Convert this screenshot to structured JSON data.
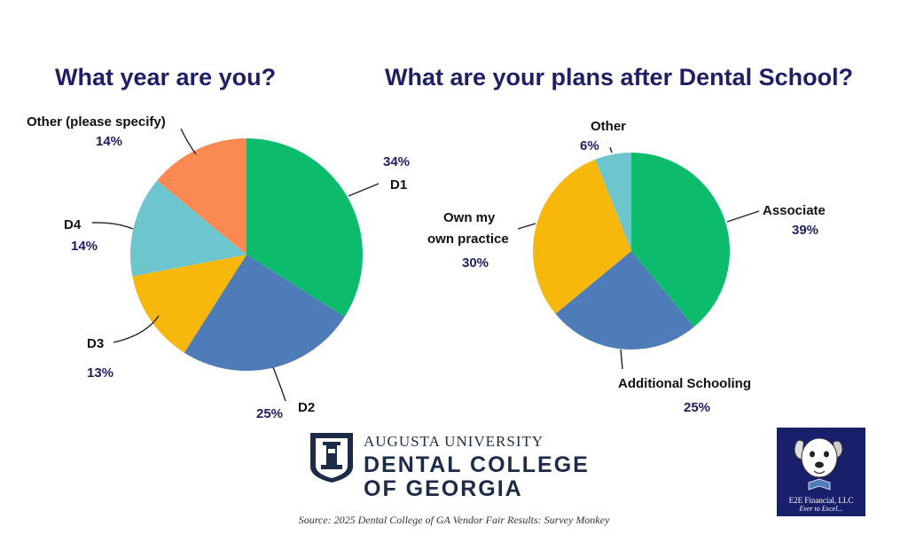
{
  "chart_data": [
    {
      "type": "pie",
      "title": "What year are you?",
      "slices": [
        {
          "label": "D1",
          "value": 34,
          "display": "34%",
          "color": "#0dbb6c"
        },
        {
          "label": "D2",
          "value": 25,
          "display": "25%",
          "color": "#4e7cb8"
        },
        {
          "label": "D3",
          "value": 13,
          "display": "13%",
          "color": "#f7b70b"
        },
        {
          "label": "D4",
          "value": 14,
          "display": "14%",
          "color": "#6dc6cd"
        },
        {
          "label": "Other (please specify)",
          "value": 14,
          "display": "14%",
          "color": "#fa8a52"
        }
      ]
    },
    {
      "type": "pie",
      "title": "What are your plans after Dental School?",
      "slices": [
        {
          "label": "Associate",
          "value": 39,
          "display": "39%",
          "color": "#0dbb6c"
        },
        {
          "label": "Additional Schooling",
          "value": 25,
          "display": "25%",
          "color": "#4e7cb8"
        },
        {
          "label": "Own my own practice",
          "value": 30,
          "display": "30%",
          "color": "#f7b70b"
        },
        {
          "label": "Other",
          "value": 6,
          "display": "6%",
          "color": "#6dc6cd"
        }
      ]
    }
  ],
  "logo": {
    "line1": "AUGUSTA UNIVERSITY",
    "line2": "DENTAL COLLEGE",
    "line3": "OF GEORGIA",
    "icon": "university-crest-icon"
  },
  "source": "Source: 2025 Dental College of GA Vendor Fair Results: Survey Monkey",
  "badge": {
    "name": "E2E Financial, LLC",
    "tagline": "Ever to Excel...",
    "icon": "dog-mascot-icon"
  }
}
